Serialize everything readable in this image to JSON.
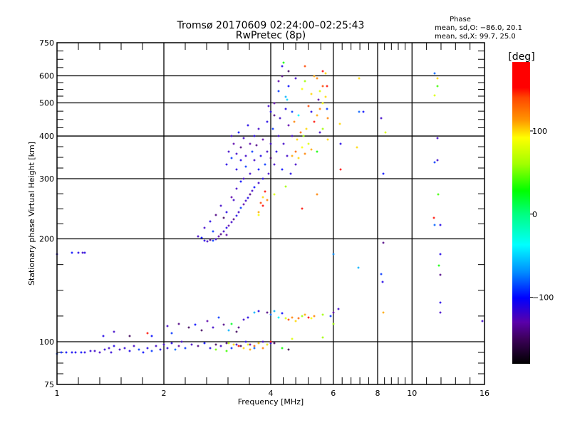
{
  "chart_data": {
    "type": "scatter",
    "title": "Tromsø 20170609 02:24:00–02:25:43",
    "subtitle": "RwPretec (8p)",
    "xlabel": "Frequency [MHz]",
    "ylabel": "Stationary phase Virtual Height [km]",
    "xscale": "log",
    "yscale": "log",
    "xlim": [
      1,
      16
    ],
    "ylim": [
      75,
      750
    ],
    "x_ticks": [
      1,
      2,
      4,
      6,
      8,
      10,
      16
    ],
    "x_tick_labels": [
      "1",
      "2",
      "4",
      "6",
      "8",
      "10",
      "16"
    ],
    "y_ticks": [
      75,
      100,
      200,
      300,
      400,
      500,
      600,
      750
    ],
    "y_tick_labels": [
      "75",
      "100",
      "200",
      "300",
      "400",
      "500",
      "600",
      "750"
    ],
    "grid": true,
    "stats": {
      "heading": "Phase",
      "line_o": "mean, sd,O: −86.0, 20.1",
      "line_x": "mean, sd,X:  99.7, 25.0"
    },
    "colorbar": {
      "label": "[deg]",
      "range": [
        -180,
        183
      ],
      "ticks": [
        100,
        0,
        -100
      ],
      "tick_labels": [
        "100",
        "0",
        "−100"
      ]
    },
    "point_fields": [
      "frequency_mhz",
      "height_km",
      "phase_deg"
    ],
    "points": [
      [
        1.0,
        92,
        -90
      ],
      [
        1.03,
        93,
        -95
      ],
      [
        1.06,
        93,
        -100
      ],
      [
        1.1,
        93,
        -105
      ],
      [
        1.13,
        93,
        -105
      ],
      [
        1.17,
        93,
        -100
      ],
      [
        1.2,
        93,
        -110
      ],
      [
        1.24,
        94,
        -115
      ],
      [
        1.28,
        94,
        -120
      ],
      [
        1.32,
        93,
        -120
      ],
      [
        1.36,
        95,
        -115
      ],
      [
        1.4,
        96,
        -120
      ],
      [
        1.42,
        93,
        -115
      ],
      [
        1.45,
        97,
        -110
      ],
      [
        1.5,
        95,
        -120
      ],
      [
        1.55,
        96,
        -115
      ],
      [
        1.6,
        94,
        -110
      ],
      [
        1.65,
        97,
        -120
      ],
      [
        1.7,
        95,
        -90
      ],
      [
        1.75,
        93,
        -100
      ],
      [
        1.8,
        96,
        -110
      ],
      [
        1.85,
        94,
        -90
      ],
      [
        1.9,
        97,
        -120
      ],
      [
        1.95,
        95,
        -110
      ],
      [
        2.0,
        98,
        -120
      ],
      [
        2.05,
        96,
        -115
      ],
      [
        2.1,
        99,
        -110
      ],
      [
        2.15,
        95,
        -80
      ],
      [
        2.2,
        97,
        -130
      ],
      [
        2.25,
        100,
        -120
      ],
      [
        2.3,
        96,
        -90
      ],
      [
        2.4,
        98,
        -120
      ],
      [
        2.5,
        97,
        -140
      ],
      [
        2.6,
        99,
        -100
      ],
      [
        2.7,
        96,
        -110
      ],
      [
        2.8,
        98,
        -150
      ],
      [
        2.9,
        97,
        -120
      ],
      [
        3.0,
        99,
        -140
      ],
      [
        3.1,
        96,
        -90
      ],
      [
        3.2,
        98,
        -120
      ],
      [
        3.3,
        97,
        -150
      ],
      [
        3.4,
        100,
        -110
      ],
      [
        3.5,
        98,
        -130
      ],
      [
        3.6,
        96,
        -80
      ],
      [
        3.7,
        99,
        -140
      ],
      [
        3.8,
        100,
        -120
      ],
      [
        3.9,
        98,
        -130
      ],
      [
        4.0,
        99,
        -110
      ],
      [
        1.35,
        104,
        -110
      ],
      [
        1.45,
        107,
        -120
      ],
      [
        1.6,
        104,
        -150
      ],
      [
        1.8,
        106,
        150
      ],
      [
        1.85,
        104,
        -100
      ],
      [
        2.05,
        111,
        -120
      ],
      [
        2.1,
        106,
        -90
      ],
      [
        2.2,
        113,
        -140
      ],
      [
        2.35,
        110,
        -150
      ],
      [
        2.45,
        112,
        -100
      ],
      [
        2.55,
        108,
        -150
      ],
      [
        2.65,
        115,
        -130
      ],
      [
        2.75,
        110,
        -120
      ],
      [
        2.85,
        118,
        -90
      ],
      [
        2.95,
        112,
        -140
      ],
      [
        3.05,
        108,
        -60
      ],
      [
        3.1,
        113,
        20
      ],
      [
        3.2,
        107,
        -150
      ],
      [
        3.25,
        110,
        -140
      ],
      [
        3.35,
        116,
        -120
      ],
      [
        3.45,
        118,
        -110
      ],
      [
        3.6,
        122,
        -60
      ],
      [
        3.7,
        123,
        -110
      ],
      [
        3.9,
        122,
        -140
      ],
      [
        4.0,
        120,
        -80
      ],
      [
        4.1,
        123,
        -60
      ],
      [
        4.2,
        118,
        -40
      ],
      [
        4.3,
        121,
        -100
      ],
      [
        4.4,
        117,
        80
      ],
      [
        4.5,
        116,
        140
      ],
      [
        4.6,
        118,
        120
      ],
      [
        4.7,
        115,
        100
      ],
      [
        4.8,
        117,
        130
      ],
      [
        4.9,
        119,
        60
      ],
      [
        5.0,
        120,
        110
      ],
      [
        5.1,
        118,
        160
      ],
      [
        5.2,
        117,
        90
      ],
      [
        5.3,
        119,
        120
      ],
      [
        5.6,
        120,
        60
      ],
      [
        5.9,
        119,
        -90
      ],
      [
        6.0,
        122,
        -130
      ],
      [
        3.05,
        99,
        70
      ],
      [
        3.15,
        98,
        100
      ],
      [
        3.25,
        97,
        150
      ],
      [
        3.35,
        96,
        100
      ],
      [
        3.45,
        98,
        90
      ],
      [
        3.5,
        95,
        110
      ],
      [
        3.6,
        97,
        130
      ],
      [
        3.7,
        99,
        100
      ],
      [
        3.8,
        96,
        120
      ],
      [
        3.9,
        98,
        90
      ],
      [
        4.0,
        100,
        170
      ],
      [
        4.1,
        99,
        -150
      ],
      [
        3.0,
        94,
        40
      ],
      [
        2.8,
        95,
        50
      ],
      [
        4.3,
        96,
        30
      ],
      [
        4.5,
        95,
        -160
      ],
      [
        5.6,
        103,
        60
      ],
      [
        4.6,
        102,
        80
      ],
      [
        2.5,
        203,
        -120
      ],
      [
        2.55,
        201,
        -100
      ],
      [
        2.6,
        198,
        -110
      ],
      [
        2.65,
        197,
        -120
      ],
      [
        2.7,
        199,
        -140
      ],
      [
        2.75,
        198,
        -90
      ],
      [
        2.8,
        200,
        -120
      ],
      [
        2.85,
        203,
        -130
      ],
      [
        2.9,
        206,
        -140
      ],
      [
        2.95,
        210,
        -120
      ],
      [
        3.0,
        215,
        -110
      ],
      [
        3.05,
        219,
        -130
      ],
      [
        3.1,
        224,
        -120
      ],
      [
        3.15,
        228,
        -140
      ],
      [
        3.2,
        234,
        -110
      ],
      [
        3.25,
        240,
        -120
      ],
      [
        3.3,
        246,
        -90
      ],
      [
        3.35,
        252,
        -130
      ],
      [
        3.4,
        258,
        -120
      ],
      [
        3.45,
        264,
        -110
      ],
      [
        3.5,
        270,
        -140
      ],
      [
        3.55,
        276,
        -120
      ],
      [
        3.6,
        283,
        -100
      ],
      [
        3.7,
        292,
        -120
      ],
      [
        3.8,
        300,
        -110
      ],
      [
        2.6,
        215,
        -120
      ],
      [
        2.7,
        225,
        -110
      ],
      [
        2.8,
        235,
        -140
      ],
      [
        2.75,
        210,
        -90
      ],
      [
        2.9,
        250,
        -120
      ],
      [
        3.0,
        240,
        -110
      ],
      [
        3.1,
        265,
        -130
      ],
      [
        3.2,
        280,
        -120
      ],
      [
        3.3,
        295,
        -100
      ],
      [
        3.0,
        205,
        -130
      ],
      [
        2.95,
        230,
        -150
      ],
      [
        3.15,
        260,
        -120
      ],
      [
        3.35,
        300,
        -120
      ],
      [
        3.7,
        240,
        110
      ],
      [
        3.75,
        255,
        140
      ],
      [
        3.8,
        265,
        100
      ],
      [
        3.85,
        275,
        150
      ],
      [
        3.9,
        260,
        120
      ],
      [
        3.8,
        250,
        160
      ],
      [
        3.7,
        235,
        90
      ],
      [
        4.1,
        270,
        80
      ],
      [
        4.4,
        285,
        60
      ],
      [
        4.9,
        245,
        150
      ],
      [
        5.4,
        270,
        120
      ],
      [
        3.0,
        330,
        -110
      ],
      [
        3.05,
        360,
        -120
      ],
      [
        3.1,
        345,
        -90
      ],
      [
        3.1,
        400,
        -120
      ],
      [
        3.15,
        380,
        -130
      ],
      [
        3.2,
        320,
        -110
      ],
      [
        3.2,
        355,
        -120
      ],
      [
        3.25,
        410,
        -100
      ],
      [
        3.3,
        340,
        -110
      ],
      [
        3.3,
        370,
        -140
      ],
      [
        3.35,
        395,
        -120
      ],
      [
        3.4,
        325,
        -90
      ],
      [
        3.4,
        350,
        -120
      ],
      [
        3.45,
        430,
        -110
      ],
      [
        3.5,
        380,
        -130
      ],
      [
        3.5,
        310,
        -120
      ],
      [
        3.55,
        360,
        -90
      ],
      [
        3.6,
        340,
        -120
      ],
      [
        3.6,
        400,
        -110
      ],
      [
        3.65,
        375,
        -140
      ],
      [
        3.7,
        320,
        -100
      ],
      [
        3.7,
        420,
        -120
      ],
      [
        3.75,
        350,
        -110
      ],
      [
        3.8,
        390,
        -130
      ],
      [
        3.85,
        330,
        -90
      ],
      [
        3.9,
        360,
        -120
      ],
      [
        3.9,
        440,
        -110
      ],
      [
        3.95,
        310,
        -120
      ],
      [
        4.0,
        345,
        -150
      ],
      [
        4.0,
        380,
        -120
      ],
      [
        4.0,
        470,
        -110
      ],
      [
        4.05,
        420,
        -90
      ],
      [
        4.1,
        330,
        -120
      ],
      [
        4.1,
        500,
        -130
      ],
      [
        4.15,
        360,
        -110
      ],
      [
        4.2,
        400,
        -120
      ],
      [
        4.2,
        540,
        -90
      ],
      [
        4.25,
        450,
        -120
      ],
      [
        4.3,
        320,
        -100
      ],
      [
        4.3,
        600,
        -140
      ],
      [
        4.35,
        380,
        -120
      ],
      [
        4.4,
        480,
        -110
      ],
      [
        4.4,
        520,
        -60
      ],
      [
        4.45,
        350,
        -120
      ],
      [
        4.5,
        430,
        -130
      ],
      [
        4.5,
        560,
        -100
      ],
      [
        4.55,
        310,
        -110
      ],
      [
        4.6,
        400,
        -120
      ],
      [
        4.6,
        470,
        -90
      ],
      [
        4.7,
        330,
        -120
      ],
      [
        4.3,
        640,
        -110
      ],
      [
        4.35,
        655,
        30
      ],
      [
        4.5,
        620,
        -150
      ],
      [
        4.7,
        590,
        -120
      ],
      [
        4.2,
        580,
        -130
      ],
      [
        4.1,
        460,
        -140
      ],
      [
        3.95,
        490,
        -120
      ],
      [
        4.45,
        510,
        -50
      ],
      [
        4.6,
        350,
        110
      ],
      [
        4.7,
        360,
        130
      ],
      [
        4.8,
        345,
        100
      ],
      [
        4.9,
        370,
        90
      ],
      [
        5.0,
        355,
        120
      ],
      [
        5.1,
        380,
        80
      ],
      [
        5.2,
        365,
        110
      ],
      [
        4.75,
        390,
        100
      ],
      [
        4.85,
        410,
        130
      ],
      [
        4.95,
        400,
        60
      ],
      [
        5.05,
        420,
        100
      ],
      [
        5.3,
        440,
        150
      ],
      [
        5.4,
        460,
        110
      ],
      [
        5.5,
        480,
        120
      ],
      [
        5.6,
        500,
        90
      ],
      [
        5.7,
        520,
        100
      ],
      [
        5.5,
        540,
        80
      ],
      [
        5.6,
        560,
        140
      ],
      [
        5.4,
        590,
        120
      ],
      [
        5.7,
        610,
        100
      ],
      [
        5.6,
        620,
        160
      ],
      [
        5.3,
        600,
        110
      ],
      [
        5.0,
        580,
        60
      ],
      [
        4.9,
        550,
        90
      ],
      [
        5.2,
        530,
        100
      ],
      [
        5.1,
        490,
        140
      ],
      [
        5.8,
        450,
        120
      ],
      [
        5.75,
        480,
        -90
      ],
      [
        5.5,
        410,
        -120
      ],
      [
        5.2,
        470,
        -110
      ],
      [
        4.8,
        460,
        -40
      ],
      [
        5.6,
        420,
        60
      ],
      [
        5.8,
        390,
        100
      ],
      [
        5.4,
        360,
        30
      ],
      [
        4.65,
        440,
        120
      ],
      [
        5.75,
        560,
        150
      ],
      [
        5.45,
        510,
        -130
      ],
      [
        5.0,
        640,
        140
      ],
      [
        6.3,
        320,
        160
      ],
      [
        6.3,
        380,
        -110
      ],
      [
        6.25,
        435,
        100
      ],
      [
        7.1,
        590,
        100
      ],
      [
        7.1,
        470,
        -80
      ],
      [
        7.3,
        470,
        -100
      ],
      [
        8.2,
        450,
        -120
      ],
      [
        8.3,
        310,
        -100
      ],
      [
        8.4,
        410,
        80
      ],
      [
        7.0,
        370,
        100
      ],
      [
        11.6,
        610,
        -80
      ],
      [
        11.8,
        590,
        100
      ],
      [
        11.8,
        560,
        40
      ],
      [
        11.6,
        525,
        80
      ],
      [
        11.8,
        395,
        -120
      ],
      [
        11.6,
        335,
        -90
      ],
      [
        11.8,
        340,
        -120
      ],
      [
        11.5,
        230,
        150
      ],
      [
        11.6,
        220,
        -80
      ],
      [
        12.0,
        220,
        -110
      ],
      [
        11.85,
        270,
        40
      ],
      [
        12.0,
        180,
        -110
      ],
      [
        11.9,
        167,
        30
      ],
      [
        12.0,
        157,
        -140
      ],
      [
        12.0,
        130,
        -110
      ],
      [
        12.0,
        122,
        -120
      ],
      [
        8.3,
        195,
        -140
      ],
      [
        8.2,
        158,
        -90
      ],
      [
        8.25,
        150,
        -110
      ],
      [
        7.05,
        165,
        -60
      ],
      [
        6.2,
        125,
        -120
      ],
      [
        8.3,
        122,
        110
      ],
      [
        6.0,
        180,
        -70
      ],
      [
        1.0,
        180,
        -110
      ],
      [
        1.1,
        182,
        -100
      ],
      [
        1.15,
        182,
        -110
      ],
      [
        1.18,
        182,
        -120
      ],
      [
        1.2,
        182,
        -110
      ],
      [
        15.8,
        115,
        -120
      ],
      [
        6.0,
        113,
        60
      ]
    ]
  }
}
